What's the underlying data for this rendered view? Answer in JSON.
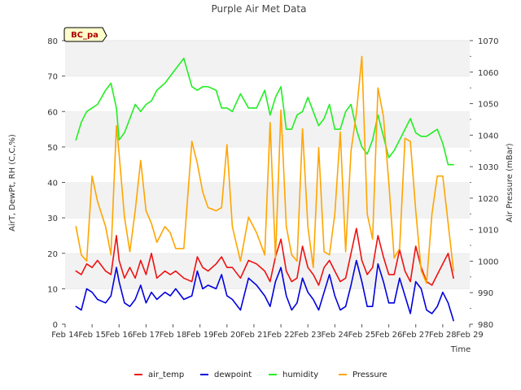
{
  "chart_data": {
    "type": "line",
    "title": "Purple Air Met Data",
    "badge": "BC_pa",
    "xlabel": "Time",
    "ylabel": "AirT, DewPt, RH (C,C,%)",
    "y2label": "Air Pressure (mBar)",
    "xlim": [
      14,
      29
    ],
    "ylim": [
      0,
      80
    ],
    "y2lim": [
      980,
      1070
    ],
    "x_ticks": [
      14,
      15,
      16,
      17,
      18,
      19,
      20,
      21,
      22,
      23,
      24,
      25,
      26,
      27,
      28,
      29
    ],
    "x_tick_labels": [
      "Feb 14",
      "Feb 15",
      "Feb 16",
      "Feb 17",
      "Feb 18",
      "Feb 19",
      "Feb 20",
      "Feb 21",
      "Feb 22",
      "Feb 23",
      "Feb 24",
      "Feb 25",
      "Feb 26",
      "Feb 27",
      "Feb 28",
      "Feb 29"
    ],
    "y_ticks": [
      0,
      10,
      20,
      30,
      40,
      50,
      60,
      70,
      80
    ],
    "y2_ticks": [
      980,
      990,
      1000,
      1010,
      1020,
      1030,
      1040,
      1050,
      1060,
      1070
    ],
    "grid": "horizontal banded",
    "legend_position": "bottom-center",
    "series": [
      {
        "name": "air_temp",
        "color": "#ee1111",
        "axis": "left",
        "x": [
          14.4,
          14.6,
          14.8,
          15.0,
          15.2,
          15.5,
          15.7,
          15.9,
          16.0,
          16.2,
          16.4,
          16.6,
          16.8,
          17.0,
          17.2,
          17.4,
          17.7,
          17.9,
          18.1,
          18.4,
          18.7,
          18.9,
          19.1,
          19.3,
          19.6,
          19.8,
          20.0,
          20.2,
          20.5,
          20.8,
          21.1,
          21.4,
          21.6,
          21.8,
          22.0,
          22.2,
          22.4,
          22.6,
          22.8,
          23.0,
          23.2,
          23.4,
          23.6,
          23.8,
          24.0,
          24.2,
          24.4,
          24.6,
          24.8,
          25.0,
          25.2,
          25.4,
          25.6,
          25.8,
          26.0,
          26.2,
          26.4,
          26.6,
          26.8,
          27.0,
          27.2,
          27.4,
          27.6,
          27.8,
          28.0,
          28.2,
          28.4
        ],
        "y": [
          15,
          14,
          17,
          16,
          18,
          15,
          14,
          25,
          18,
          13,
          16,
          13,
          18,
          14,
          20,
          13,
          15,
          14,
          15,
          13,
          12,
          19,
          16,
          15,
          17,
          19,
          16,
          16,
          13,
          18,
          17,
          15,
          12,
          19,
          24,
          15,
          12,
          13,
          22,
          16,
          14,
          11,
          16,
          18,
          15,
          12,
          13,
          20,
          27,
          18,
          14,
          16,
          25,
          19,
          14,
          14,
          21,
          15,
          12,
          22,
          16,
          12,
          11,
          14,
          17,
          20,
          13
        ]
      },
      {
        "name": "dewpoint",
        "color": "#0000dd",
        "axis": "left",
        "x": [
          14.4,
          14.6,
          14.8,
          15.0,
          15.2,
          15.5,
          15.7,
          15.9,
          16.0,
          16.2,
          16.4,
          16.6,
          16.8,
          17.0,
          17.2,
          17.4,
          17.7,
          17.9,
          18.1,
          18.4,
          18.7,
          18.9,
          19.1,
          19.3,
          19.6,
          19.8,
          20.0,
          20.2,
          20.5,
          20.8,
          21.1,
          21.4,
          21.6,
          21.8,
          22.0,
          22.2,
          22.4,
          22.6,
          22.8,
          23.0,
          23.2,
          23.4,
          23.6,
          23.8,
          24.0,
          24.2,
          24.4,
          24.6,
          24.8,
          25.0,
          25.2,
          25.4,
          25.6,
          25.8,
          26.0,
          26.2,
          26.4,
          26.6,
          26.8,
          27.0,
          27.2,
          27.4,
          27.6,
          27.8,
          28.0,
          28.2,
          28.4
        ],
        "y": [
          5,
          4,
          10,
          9,
          7,
          6,
          8,
          16,
          12,
          6,
          5,
          7,
          11,
          6,
          9,
          7,
          9,
          8,
          10,
          7,
          8,
          15,
          10,
          11,
          10,
          14,
          8,
          7,
          4,
          13,
          11,
          8,
          5,
          12,
          16,
          8,
          4,
          6,
          13,
          9,
          7,
          4,
          9,
          14,
          8,
          4,
          5,
          11,
          18,
          12,
          5,
          5,
          17,
          12,
          6,
          6,
          13,
          8,
          3,
          12,
          10,
          4,
          3,
          5,
          9,
          6,
          1
        ]
      },
      {
        "name": "humidity",
        "color": "#22ee22",
        "axis": "left",
        "x": [
          14.4,
          14.6,
          14.8,
          15.0,
          15.2,
          15.5,
          15.7,
          15.9,
          16.0,
          16.2,
          16.4,
          16.6,
          16.8,
          17.0,
          17.2,
          17.4,
          17.7,
          17.9,
          18.1,
          18.4,
          18.7,
          18.9,
          19.1,
          19.3,
          19.6,
          19.8,
          20.0,
          20.2,
          20.5,
          20.8,
          21.1,
          21.4,
          21.6,
          21.8,
          22.0,
          22.2,
          22.4,
          22.6,
          22.8,
          23.0,
          23.2,
          23.4,
          23.6,
          23.8,
          24.0,
          24.2,
          24.4,
          24.6,
          24.8,
          25.0,
          25.2,
          25.4,
          25.6,
          25.8,
          26.0,
          26.2,
          26.4,
          26.6,
          26.8,
          27.0,
          27.2,
          27.4,
          27.6,
          27.8,
          28.0,
          28.2,
          28.4
        ],
        "y": [
          52,
          57,
          60,
          61,
          62,
          66,
          68,
          61,
          52,
          54,
          58,
          62,
          60,
          62,
          63,
          66,
          68,
          70,
          72,
          75,
          67,
          66,
          67,
          67,
          66,
          61,
          61,
          60,
          65,
          61,
          61,
          66,
          59,
          64,
          67,
          55,
          55,
          59,
          60,
          64,
          60,
          56,
          58,
          62,
          55,
          55,
          60,
          62,
          55,
          50,
          48,
          52,
          59,
          53,
          47,
          49,
          52,
          55,
          58,
          54,
          53,
          53,
          54,
          55,
          51,
          45,
          45
        ]
      },
      {
        "name": "Pressure",
        "color": "#ffa500",
        "axis": "right",
        "x": [
          14.4,
          14.6,
          14.8,
          15.0,
          15.2,
          15.5,
          15.7,
          15.9,
          16.0,
          16.2,
          16.4,
          16.6,
          16.8,
          17.0,
          17.2,
          17.4,
          17.7,
          17.9,
          18.1,
          18.4,
          18.7,
          18.9,
          19.1,
          19.3,
          19.6,
          19.8,
          20.0,
          20.2,
          20.5,
          20.8,
          21.1,
          21.4,
          21.6,
          21.8,
          22.0,
          22.2,
          22.4,
          22.6,
          22.8,
          23.0,
          23.2,
          23.4,
          23.6,
          23.8,
          24.0,
          24.2,
          24.4,
          24.6,
          24.8,
          25.0,
          25.2,
          25.4,
          25.6,
          25.8,
          26.0,
          26.2,
          26.4,
          26.6,
          26.8,
          27.0,
          27.2,
          27.4,
          27.6,
          27.8,
          28.0,
          28.2,
          28.4
        ],
        "y": [
          1011,
          1002,
          1000,
          1027,
          1019,
          1011,
          1002,
          1043,
          1034,
          1014,
          1003,
          1016,
          1032,
          1016,
          1012,
          1006,
          1011,
          1009,
          1004,
          1004,
          1038,
          1031,
          1022,
          1017,
          1016,
          1017,
          1037,
          1011,
          1000,
          1014,
          1009,
          1002,
          1044,
          1001,
          1048,
          1011,
          1002,
          1000,
          1042,
          1011,
          998,
          1036,
          1003,
          1002,
          1015,
          1041,
          1003,
          1035,
          1047,
          1065,
          1015,
          1007,
          1055,
          1046,
          1025,
          1001,
          1004,
          1039,
          1038,
          1016,
          997,
          993,
          1015,
          1027,
          1027,
          1012,
          997
        ]
      }
    ]
  }
}
